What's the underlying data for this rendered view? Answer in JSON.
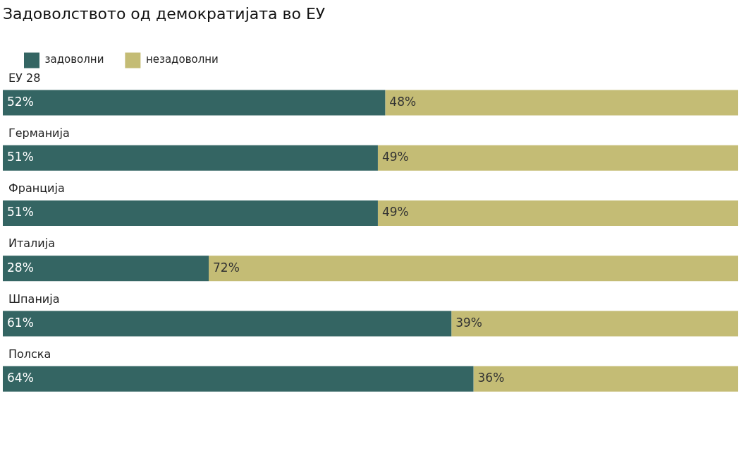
{
  "chart_data": {
    "type": "bar",
    "title": "Задоволството од демократијата во ЕУ",
    "categories": [
      "ЕУ 28",
      "Германија",
      "Франција",
      "Италија",
      "Шпанија",
      "Полска"
    ],
    "series": [
      {
        "name": "задоволни",
        "color": "#346563",
        "values": [
          52,
          51,
          51,
          28,
          61,
          64
        ],
        "value_labels": [
          "52%",
          "51%",
          "51%",
          "28%",
          "61%",
          "64%"
        ]
      },
      {
        "name": "незадоволни",
        "color": "#c4bc75",
        "values": [
          48,
          49,
          49,
          72,
          39,
          36
        ],
        "value_labels": [
          "48%",
          "49%",
          "49%",
          "72%",
          "39%",
          "36%"
        ]
      }
    ],
    "stacked": true,
    "orientation": "horizontal",
    "grid": false,
    "legend": "top left",
    "tick_labels": false
  }
}
